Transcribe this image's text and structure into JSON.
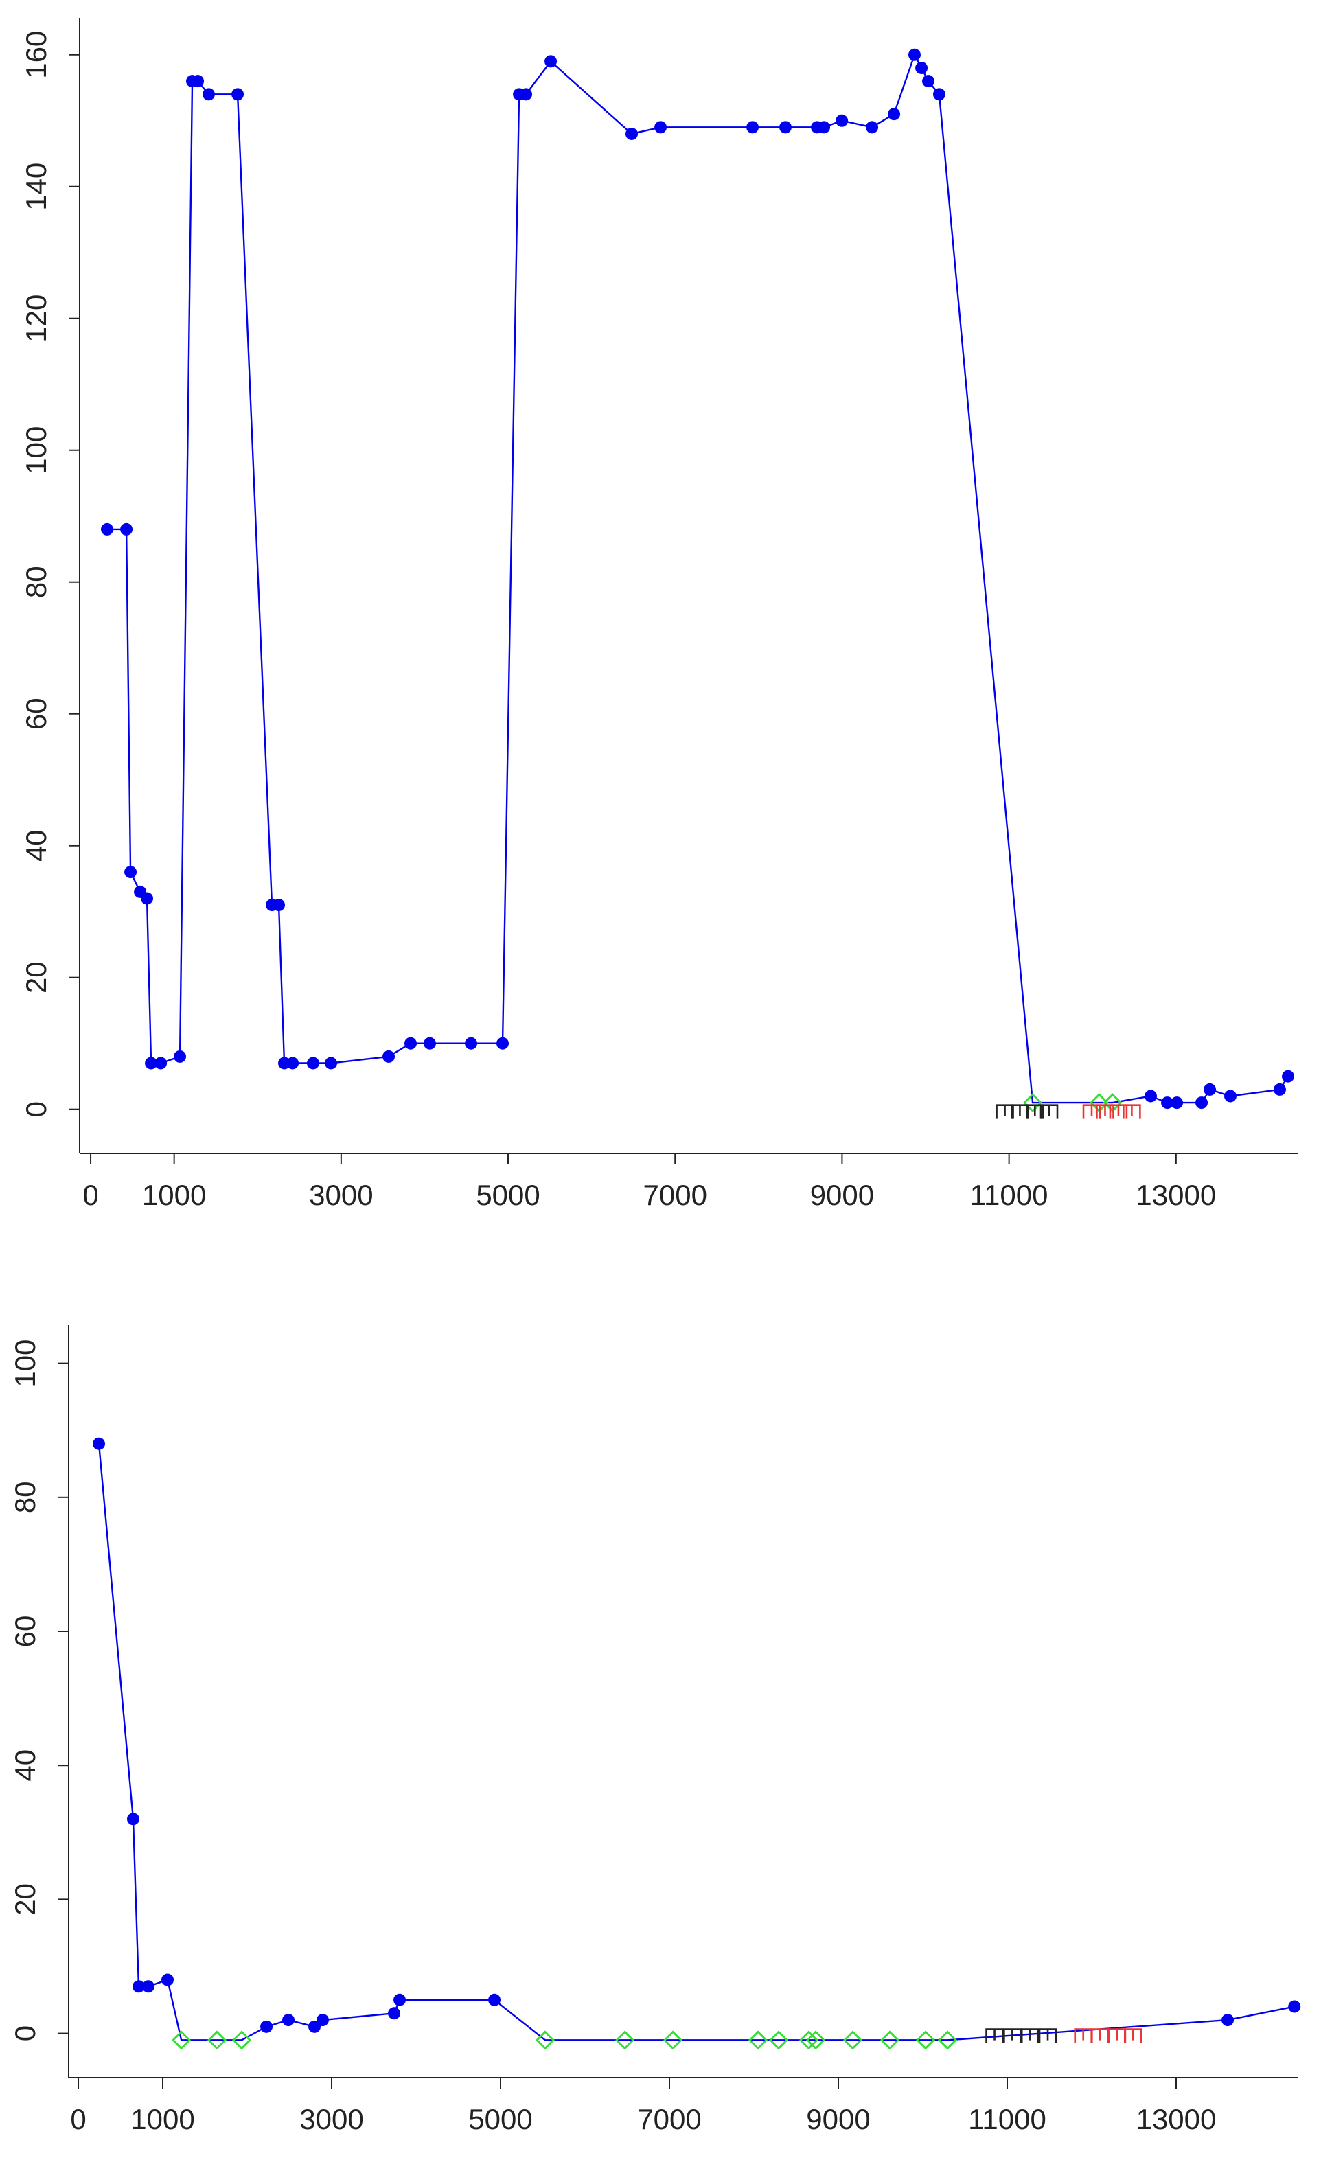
{
  "chart_data": [
    {
      "type": "line",
      "xlim": [
        -132,
        14457
      ],
      "ylim": [
        -6.7,
        165.6
      ],
      "xticks": [
        0,
        1000,
        3000,
        5000,
        7000,
        9000,
        11000,
        13000
      ],
      "yticks": [
        0,
        20,
        40,
        60,
        80,
        100,
        120,
        140,
        160
      ],
      "marker_colors": {
        "dot": "#0000ee",
        "diamond": "#33dd33"
      },
      "series": [
        {
          "color": "#0000ee",
          "line": true,
          "x": [
            197,
            428,
            477,
            592,
            674,
            724,
            839,
            1069,
            1217,
            1283,
            1414,
            1760,
            2171,
            2253,
            2319,
            2418,
            2664,
            2878,
            3569,
            3832,
            4062,
            4556,
            4934,
            5132,
            5214,
            5510,
            6480,
            6826,
            7928,
            8322,
            8701,
            8783,
            8997,
            9359,
            9622,
            9868,
            9951,
            10033,
            10164,
            11283,
            12080,
            12240,
            12697,
            12895,
            13010,
            13306,
            13405,
            13651,
            14243,
            14342
          ],
          "values": [
            88,
            88,
            36,
            33,
            32,
            7,
            7,
            8,
            156,
            156,
            154,
            154,
            31,
            31,
            7,
            7,
            7,
            7,
            8,
            10,
            10,
            10,
            10,
            154,
            154,
            159,
            148,
            149,
            149,
            149,
            149,
            149,
            150,
            149,
            151,
            160,
            158,
            156,
            154,
            1,
            1,
            1,
            2,
            1,
            1,
            1,
            3,
            2,
            3,
            5
          ],
          "markers": [
            "dot",
            "dot",
            "dot",
            "dot",
            "dot",
            "dot",
            "dot",
            "dot",
            "dot",
            "dot",
            "dot",
            "dot",
            "dot",
            "dot",
            "dot",
            "dot",
            "dot",
            "dot",
            "dot",
            "dot",
            "dot",
            "dot",
            "dot",
            "dot",
            "dot",
            "dot",
            "dot",
            "dot",
            "dot",
            "dot",
            "dot",
            "dot",
            "dot",
            "dot",
            "dot",
            "dot",
            "dot",
            "dot",
            "dot",
            "diamond",
            "diamond",
            "diamond",
            "dot",
            "dot",
            "dot",
            "dot",
            "dot",
            "dot",
            "dot",
            "dot"
          ]
        },
        {
          "color": "#222222",
          "line": false,
          "x": [
            10950,
            11130,
            11310,
            11480
          ],
          "values": [
            0,
            0,
            0,
            0
          ],
          "markers": [
            "glyph",
            "glyph",
            "glyph",
            "glyph"
          ]
        },
        {
          "color": "#ee3333",
          "line": false,
          "x": [
            11990,
            12150,
            12310,
            12470
          ],
          "values": [
            0,
            0,
            0,
            0
          ],
          "markers": [
            "glyph",
            "glyph",
            "glyph",
            "glyph"
          ]
        }
      ]
    },
    {
      "type": "line",
      "xlim": [
        -114,
        14439
      ],
      "ylim": [
        -6.6,
        105.7
      ],
      "xticks": [
        0,
        1000,
        3000,
        5000,
        7000,
        9000,
        11000,
        13000
      ],
      "yticks": [
        0,
        20,
        40,
        60,
        80,
        100
      ],
      "marker_colors": {
        "dot": "#0000ee",
        "diamond": "#33dd33"
      },
      "series": [
        {
          "color": "#0000ee",
          "line": true,
          "x": [
            244,
            650,
            715,
            829,
            1057,
            1220,
            1642,
            1935,
            2228,
            2488,
            2797,
            2894,
            3740,
            3805,
            4927,
            5528,
            6472,
            7041,
            8049,
            8293,
            8650,
            8732,
            9171,
            9610,
            10033,
            10293,
            13610,
            14400
          ],
          "values": [
            88,
            32,
            7,
            7,
            8,
            -1,
            -1,
            -1,
            1,
            2,
            1,
            2,
            3,
            5,
            5,
            -1,
            -1,
            -1,
            -1,
            -1,
            -1,
            -1,
            -1,
            -1,
            -1,
            -1,
            2,
            4
          ],
          "markers": [
            "dot",
            "dot",
            "dot",
            "dot",
            "dot",
            "diamond",
            "diamond",
            "diamond",
            "dot",
            "dot",
            "dot",
            "dot",
            "dot",
            "dot",
            "dot",
            "diamond",
            "diamond",
            "diamond",
            "diamond",
            "diamond",
            "diamond",
            "diamond",
            "diamond",
            "diamond",
            "diamond",
            "diamond",
            "dot",
            "dot"
          ]
        },
        {
          "color": "#222222",
          "line": false,
          "x": [
            10850,
            11060,
            11270,
            11480
          ],
          "values": [
            0,
            0,
            0,
            0
          ],
          "markers": [
            "glyph",
            "glyph",
            "glyph",
            "glyph"
          ]
        },
        {
          "color": "#ee3333",
          "line": false,
          "x": [
            11900,
            12100,
            12300,
            12490
          ],
          "values": [
            0,
            0,
            0,
            0
          ],
          "markers": [
            "glyph",
            "glyph",
            "glyph",
            "glyph"
          ]
        }
      ]
    }
  ]
}
